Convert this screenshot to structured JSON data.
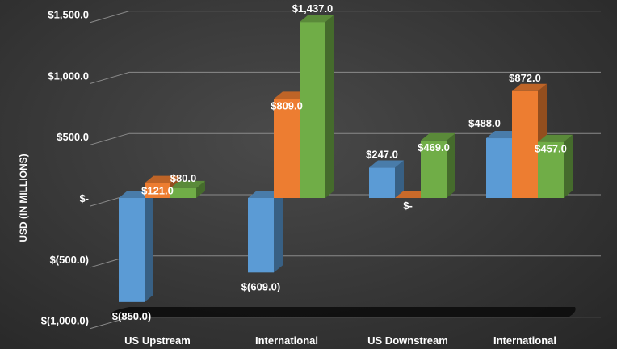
{
  "chart_data": {
    "type": "bar",
    "ylabel": "USD (IN MILLIONS)",
    "categories": [
      "US Upstream",
      "International",
      "US Downstream",
      "International"
    ],
    "series": [
      {
        "values": [
          -850.0,
          -609.0,
          247.0,
          488.0
        ]
      },
      {
        "values": [
          121.0,
          809.0,
          0,
          872.0
        ]
      },
      {
        "values": [
          80.0,
          1437.0,
          469.0,
          457.0
        ]
      }
    ],
    "data_labels": [
      [
        "$(850.0)",
        "$(609.0)",
        "$247.0",
        "$488.0"
      ],
      [
        "$121.0",
        "$809.0",
        "$-",
        "$872.0"
      ],
      [
        "$80.0",
        "$1,437.0",
        "$469.0",
        "$457.0"
      ]
    ],
    "ylim": [
      -1000,
      1500
    ],
    "yticks": [
      1500,
      1000,
      500,
      0,
      -500,
      -1000
    ],
    "ytick_labels": [
      "$1,500.0",
      "$1,000.0",
      "$500.0",
      "$-",
      "$(500.0)",
      "$(1,000.0)"
    ],
    "colors": [
      "#5b9bd5",
      "#ed7d31",
      "#70ad47"
    ],
    "legend": "none",
    "grid": true
  }
}
